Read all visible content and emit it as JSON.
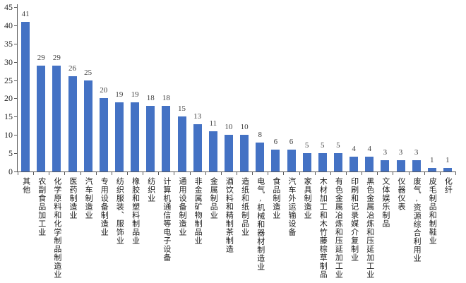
{
  "chart_data": {
    "type": "bar",
    "title": "",
    "xlabel": "",
    "ylabel": "",
    "categories": [
      "其他",
      "农副食品加工业",
      "化学原料和化学制品制造业",
      "医药制造业",
      "汽车制造业",
      "专用设备制造业",
      "纺织服装、服饰业",
      "橡胶和塑料制品业",
      "纺织业",
      "计算机通信等电子设备",
      "通用设备制造业",
      "非金属矿物制品业",
      "金属制品业",
      "酒饮料和精制茶制造",
      "造纸和纸制品业",
      "电气,机械和器材制造业",
      "食品制造业",
      "汽车外运输设备",
      "家具制造业",
      "木材加工和木竹藤棕草制品",
      "有色金属冶炼和压延加工业",
      "印刷和记录媒介复制业",
      "黑色金属冶炼和压延加工业",
      "文体娱乐制品",
      "仪器仪表",
      "废气,资源综合利用业",
      "皮毛制品和制鞋业",
      "化纤"
    ],
    "values": [
      41,
      29,
      29,
      26,
      25,
      20,
      19,
      19,
      18,
      18,
      15,
      13,
      11,
      10,
      10,
      8,
      6,
      6,
      5,
      5,
      5,
      4,
      4,
      3,
      3,
      3,
      1,
      1
    ],
    "ylim": [
      0,
      45
    ],
    "yticks": [
      0,
      5,
      10,
      15,
      20,
      25,
      30,
      35,
      40,
      45
    ],
    "grid": false,
    "legend": false,
    "value_labels_shown": true,
    "colors": {
      "bar": "#4472C4",
      "axis": "#595959",
      "y_tick_label": "#262626",
      "value_label": "#404040",
      "x_label": "#1a1a1a",
      "background": "#ffffff"
    }
  }
}
